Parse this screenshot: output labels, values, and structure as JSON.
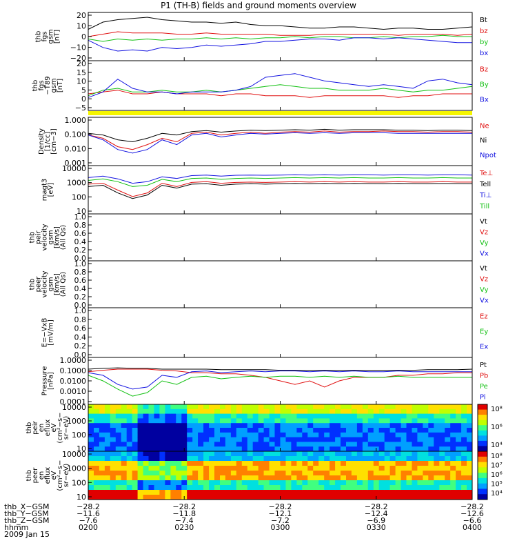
{
  "title": "P1 (TH-B) fields and ground moments overview",
  "colors": {
    "black": "#000000",
    "red": "#e01010",
    "green": "#10c010",
    "blue": "#1010e0",
    "yellow": "#f5f500"
  },
  "chart_data": {
    "type": "line",
    "time_ticks": [
      "0200",
      "0230",
      "0300",
      "0330",
      "0400"
    ],
    "time_range_hhmm": [
      "0200",
      "0400"
    ],
    "panels": [
      {
        "id": "fgs",
        "ylabel": [
          "thb",
          "fgs",
          "gsm",
          "[nT]"
        ],
        "yticks": [
          "20",
          "10",
          "0",
          "−10",
          "−20"
        ],
        "ylim": [
          -20,
          20
        ],
        "legend": [
          {
            "text": "Bt",
            "color": "black"
          },
          {
            "text": "bz",
            "color": "red"
          },
          {
            "text": "by",
            "color": "green"
          },
          {
            "text": "bx",
            "color": "blue"
          }
        ],
        "series": [
          {
            "color": "black",
            "values": [
              6,
              12,
              14,
              15,
              16,
              14,
              13,
              12,
              12,
              11,
              12,
              10,
              9,
              9,
              8,
              7,
              7,
              8,
              8,
              7,
              6,
              7,
              7,
              6,
              6,
              7,
              8
            ]
          },
          {
            "color": "red",
            "values": [
              0,
              2,
              4,
              3,
              3,
              3,
              2,
              2,
              3,
              2,
              2,
              2,
              2,
              1,
              1,
              1,
              2,
              2,
              2,
              2,
              2,
              1,
              2,
              2,
              2,
              1,
              2
            ]
          },
          {
            "color": "green",
            "values": [
              -2,
              -4,
              -2,
              -3,
              -2,
              -3,
              -2,
              -2,
              -1,
              -2,
              -1,
              -2,
              -1,
              -1,
              0,
              -1,
              0,
              0,
              -1,
              -1,
              0,
              -1,
              0,
              0,
              1,
              0,
              0
            ]
          },
          {
            "color": "blue",
            "values": [
              -3,
              -9,
              -12,
              -11,
              -12,
              -9,
              -10,
              -9,
              -7,
              -8,
              -7,
              -6,
              -4,
              -4,
              -3,
              -2,
              -2,
              -3,
              -1,
              -1,
              -2,
              -1,
              -2,
              -3,
              -4,
              -5,
              -5
            ]
          }
        ]
      },
      {
        "id": "fgs_t89",
        "ylabel": [
          "thb",
          "fgs",
          "−T89",
          "gsm",
          "[nT]"
        ],
        "yticks": [
          "20",
          "15",
          "10",
          "5",
          "0",
          "−5"
        ],
        "ylim": [
          -7,
          20
        ],
        "legend": [
          {
            "text": "Bz",
            "color": "red"
          },
          {
            "text": "By",
            "color": "green"
          },
          {
            "text": "Bx",
            "color": "blue"
          }
        ],
        "series": [
          {
            "color": "red",
            "values": [
              2,
              3,
              4,
              2,
              2,
              3,
              2,
              2,
              2,
              1,
              2,
              2,
              1,
              1,
              1,
              0,
              1,
              1,
              1,
              1,
              1,
              0,
              1,
              1,
              2,
              2,
              2
            ]
          },
          {
            "color": "green",
            "values": [
              1,
              4,
              5,
              3,
              3,
              4,
              3,
              3,
              4,
              3,
              4,
              5,
              6,
              7,
              6,
              5,
              5,
              4,
              4,
              4,
              5,
              4,
              3,
              4,
              4,
              5,
              6
            ]
          },
          {
            "color": "blue",
            "values": [
              0,
              3,
              10,
              5,
              3,
              3,
              2,
              3,
              3,
              3,
              4,
              6,
              11,
              12,
              13,
              11,
              9,
              8,
              7,
              6,
              7,
              6,
              5,
              9,
              10,
              8,
              7
            ]
          }
        ]
      },
      {
        "id": "density",
        "ylabel": [
          "Density",
          "[1/cc]",
          "[cm−3]"
        ],
        "yticks": [
          "1.000",
          "0.100",
          "0.010",
          "0.001"
        ],
        "ylim": [
          0.001,
          1
        ],
        "log": true,
        "legend": [
          {
            "text": "Ne",
            "color": "red"
          },
          {
            "text": "Ni",
            "color": "black"
          },
          {
            "text": "Npot",
            "color": "blue"
          }
        ],
        "series": [
          {
            "color": "red",
            "values": [
              0.08,
              0.05,
              0.015,
              0.01,
              0.02,
              0.05,
              0.03,
              0.1,
              0.12,
              0.08,
              0.1,
              0.12,
              0.1,
              0.12,
              0.13,
              0.12,
              0.14,
              0.12,
              0.13,
              0.13,
              0.14,
              0.13,
              0.13,
              0.12,
              0.13,
              0.13,
              0.12
            ]
          },
          {
            "color": "black",
            "values": [
              0.1,
              0.08,
              0.04,
              0.03,
              0.05,
              0.1,
              0.08,
              0.13,
              0.15,
              0.12,
              0.14,
              0.16,
              0.15,
              0.16,
              0.17,
              0.16,
              0.18,
              0.16,
              0.17,
              0.17,
              0.17,
              0.16,
              0.16,
              0.15,
              0.16,
              0.16,
              0.15
            ]
          },
          {
            "color": "blue",
            "values": [
              0.08,
              0.04,
              0.01,
              0.006,
              0.01,
              0.04,
              0.02,
              0.08,
              0.1,
              0.06,
              0.08,
              0.1,
              0.09,
              0.1,
              0.11,
              0.1,
              0.11,
              0.1,
              0.11,
              0.11,
              0.11,
              0.1,
              0.1,
              0.1,
              0.1,
              0.1,
              0.1
            ]
          }
        ]
      },
      {
        "id": "temperature",
        "ylabel": [
          "magt3",
          "[eV]"
        ],
        "yticks": [
          "10000",
          "1000",
          "100",
          "10"
        ],
        "ylim": [
          10,
          10000
        ],
        "log": true,
        "legend": [
          {
            "text": "Te⊥",
            "color": "red"
          },
          {
            "text": "Tell",
            "color": "black"
          },
          {
            "text": "Ti⊥",
            "color": "blue"
          },
          {
            "text": "Till",
            "color": "green"
          }
        ],
        "series": [
          {
            "color": "blue",
            "values": [
              1800,
              2200,
              1500,
              800,
              1000,
              2000,
              1600,
              2400,
              2600,
              2200,
              2500,
              2600,
              2500,
              2600,
              2700,
              2600,
              2700,
              2600,
              2700,
              2700,
              2600,
              2700,
              2700,
              2600,
              2700,
              2700,
              2600
            ]
          },
          {
            "color": "green",
            "values": [
              1200,
              1500,
              1000,
              500,
              600,
              1400,
              1000,
              1600,
              1700,
              1400,
              1600,
              1700,
              1600,
              1700,
              1800,
              1700,
              1800,
              1700,
              1800,
              1700,
              1700,
              1800,
              1700,
              1700,
              1800,
              1700,
              1700
            ]
          },
          {
            "color": "red",
            "values": [
              700,
              800,
              300,
              120,
              200,
              800,
              500,
              900,
              1000,
              800,
              900,
              950,
              900,
              950,
              1000,
              950,
              1000,
              950,
              1000,
              950,
              950,
              1000,
              950,
              950,
              1000,
              950,
              950
            ]
          },
          {
            "color": "black",
            "values": [
              500,
              600,
              200,
              90,
              150,
              600,
              400,
              700,
              750,
              600,
              700,
              750,
              700,
              750,
              780,
              750,
              780,
              750,
              780,
              760,
              750,
              780,
              760,
              750,
              770,
              760,
              750
            ]
          }
        ]
      },
      {
        "id": "peir_velocity",
        "ylabel": [
          "thb",
          "peir",
          "velocity",
          "gsm",
          "[km/s]",
          "(All Qs)"
        ],
        "yticks": [
          "1.0",
          "0.8",
          "0.6",
          "0.4",
          "0.2",
          "0.0"
        ],
        "ylim": [
          0,
          1
        ],
        "legend": [
          {
            "text": "Vt",
            "color": "black"
          },
          {
            "text": "Vz",
            "color": "red"
          },
          {
            "text": "Vy",
            "color": "green"
          },
          {
            "text": "Vx",
            "color": "blue"
          }
        ],
        "series": []
      },
      {
        "id": "peer_velocity",
        "ylabel": [
          "thb",
          "peer",
          "velocity",
          "gsm",
          "[km/s]",
          "(All Qs)"
        ],
        "yticks": [
          "1.0",
          "0.8",
          "0.6",
          "0.4",
          "0.2",
          "0.0"
        ],
        "ylim": [
          0,
          1
        ],
        "legend": [
          {
            "text": "Vt",
            "color": "black"
          },
          {
            "text": "Vz",
            "color": "red"
          },
          {
            "text": "Vy",
            "color": "green"
          },
          {
            "text": "Vx",
            "color": "blue"
          }
        ],
        "series": []
      },
      {
        "id": "efield",
        "ylabel": [
          "E=−VxB",
          "[mV/m]"
        ],
        "yticks": [
          "1.0",
          "0.8",
          "0.6",
          "0.4",
          "0.2",
          "0.0"
        ],
        "ylim": [
          0,
          1
        ],
        "legend": [
          {
            "text": "Ez",
            "color": "red"
          },
          {
            "text": "Ey",
            "color": "green"
          },
          {
            "text": "Ex",
            "color": "blue"
          }
        ],
        "series": []
      },
      {
        "id": "pressure",
        "ylabel": [
          "Pressure",
          "[nPa]"
        ],
        "yticks": [
          "1.0000",
          "0.1000",
          "0.0100",
          "0.0010",
          "0.0001"
        ],
        "ylim": [
          0.0001,
          1
        ],
        "log": true,
        "legend": [
          {
            "text": "Pt",
            "color": "black"
          },
          {
            "text": "Pb",
            "color": "red"
          },
          {
            "text": "Pe",
            "color": "green"
          },
          {
            "text": "Pi",
            "color": "blue"
          }
        ],
        "series": [
          {
            "color": "black",
            "values": [
              0.1,
              0.12,
              0.13,
              0.12,
              0.12,
              0.1,
              0.1,
              0.1,
              0.1,
              0.09,
              0.09,
              0.09,
              0.09,
              0.08,
              0.08,
              0.08,
              0.08,
              0.08,
              0.08,
              0.08,
              0.08,
              0.08,
              0.08,
              0.09,
              0.09,
              0.09,
              0.1
            ]
          },
          {
            "color": "red",
            "values": [
              0.06,
              0.08,
              0.1,
              0.1,
              0.1,
              0.08,
              0.07,
              0.05,
              0.05,
              0.04,
              0.04,
              0.03,
              0.02,
              0.01,
              0.005,
              0.01,
              0.003,
              0.01,
              0.02,
              0.02,
              0.02,
              0.03,
              0.03,
              0.04,
              0.04,
              0.05,
              0.05
            ]
          },
          {
            "color": "green",
            "values": [
              0.03,
              0.01,
              0.002,
              0.0005,
              0.001,
              0.01,
              0.005,
              0.02,
              0.025,
              0.015,
              0.02,
              0.025,
              0.02,
              0.025,
              0.025,
              0.02,
              0.025,
              0.02,
              0.025,
              0.02,
              0.02,
              0.025,
              0.02,
              0.02,
              0.02,
              0.02,
              0.02
            ]
          },
          {
            "color": "blue",
            "values": [
              0.05,
              0.03,
              0.005,
              0.002,
              0.003,
              0.03,
              0.02,
              0.06,
              0.07,
              0.05,
              0.06,
              0.07,
              0.06,
              0.07,
              0.07,
              0.06,
              0.07,
              0.06,
              0.07,
              0.06,
              0.06,
              0.07,
              0.06,
              0.06,
              0.06,
              0.06,
              0.06
            ]
          }
        ]
      },
      {
        "id": "peir_spec",
        "type": "heatmap",
        "ylabel": [
          "thb",
          "peir",
          "en",
          "eflux",
          "eV",
          "(cm²−s−",
          "sr−eV)"
        ],
        "yticks": [
          "10000",
          "1000",
          "100",
          "10"
        ],
        "ylim": [
          10,
          30000
        ],
        "log": true,
        "colorbar_labels": [
          "10⁸",
          "10⁶",
          "10⁴"
        ]
      },
      {
        "id": "peer_spec",
        "type": "heatmap",
        "ylabel": [
          "thb",
          "peer",
          "en",
          "eflux",
          "eV",
          "(cm²−s−",
          "sr−eV)"
        ],
        "yticks": [
          "10000",
          "1000",
          "100",
          "10"
        ],
        "ylim": [
          10,
          30000
        ],
        "log": true,
        "colorbar_labels": [
          "10⁸",
          "10⁷",
          "10⁶",
          "10⁵",
          "10⁴"
        ]
      }
    ]
  },
  "footer": {
    "row_labels": [
      "thb_X−GSM",
      "thb_Y−GSM",
      "thb_Z−GSM",
      "hhmm",
      "2009 Jan 15"
    ],
    "x_gsm": [
      "−28.2",
      "−28.2",
      "−28.2",
      "−28.2",
      "−28.2"
    ],
    "y_gsm": [
      "−11.6",
      "−11.8",
      "−12.1",
      "−12.4",
      "−12.6"
    ],
    "z_gsm": [
      "−7.6",
      "−7.4",
      "−7.2",
      "−6.9",
      "−6.6"
    ],
    "hhmm": [
      "0200",
      "0230",
      "0300",
      "0330",
      "0400"
    ]
  }
}
